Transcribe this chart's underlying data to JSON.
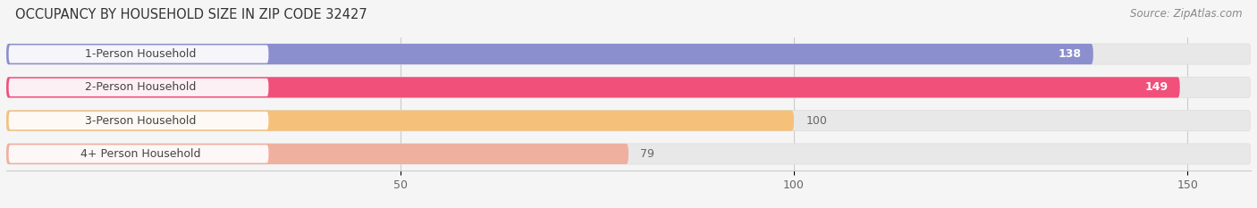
{
  "title": "OCCUPANCY BY HOUSEHOLD SIZE IN ZIP CODE 32427",
  "source": "Source: ZipAtlas.com",
  "categories": [
    "1-Person Household",
    "2-Person Household",
    "3-Person Household",
    "4+ Person Household"
  ],
  "values": [
    138,
    149,
    100,
    79
  ],
  "bar_colors": [
    "#8b8fce",
    "#f0507a",
    "#f5c07a",
    "#f0b0a0"
  ],
  "bar_bg_color": "#e8e8e8",
  "label_bg_color": "#ffffff",
  "label_colors": [
    "#ffffff",
    "#ffffff",
    "#666666",
    "#666666"
  ],
  "text_color": "#444444",
  "xlim": [
    0,
    158
  ],
  "xticks": [
    50,
    100,
    150
  ],
  "figsize": [
    14.06,
    2.33
  ],
  "dpi": 100,
  "title_fontsize": 10.5,
  "source_fontsize": 8.5,
  "bar_label_fontsize": 9,
  "category_fontsize": 9,
  "background_color": "#f5f5f5"
}
